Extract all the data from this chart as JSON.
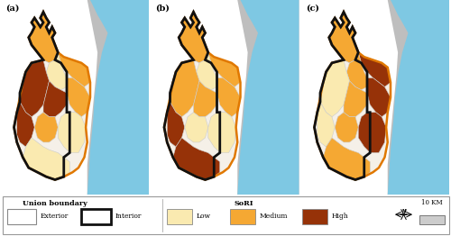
{
  "fig_width": 5.0,
  "fig_height": 2.62,
  "dpi": 100,
  "water_color": "#7EC8E3",
  "land_bg_color": "#C0C0C0",
  "gray_bg_color": "#BEBEBE",
  "exterior_color": "#F5F0E8",
  "low_color": "#FAEAB0",
  "medium_color": "#F5A833",
  "high_color": "#963208",
  "inner_district_border": "#cccccc",
  "outer_boundary_color": "#E07800",
  "inner_boundary_color": "#111111",
  "panel_labels": [
    "(a)",
    "(b)",
    "(c)"
  ],
  "legend_union_title": "Union boundary",
  "legend_sori_title": "SoRI",
  "compass_label": "10 KM",
  "panel_schemes": [
    {
      "top_finger": "medium",
      "upper_right_ext": "medium",
      "upper_center": "low",
      "right_strip": "medium",
      "left_large": "high",
      "center_mid": "high",
      "lower_left": "high",
      "lower_center": "medium",
      "bottom_right": "low",
      "bottom_left": "low"
    },
    {
      "top_finger": "medium",
      "upper_right_ext": "medium",
      "upper_center": "low",
      "right_strip": "medium",
      "left_large": "medium",
      "center_mid": "medium",
      "lower_left": "high",
      "lower_center": "low",
      "bottom_right": "low",
      "bottom_left": "high"
    },
    {
      "top_finger": "medium",
      "upper_right_ext": "high",
      "upper_center": "medium",
      "right_strip": "high",
      "left_large": "low",
      "center_mid": "medium",
      "lower_left": "low",
      "lower_center": "medium",
      "bottom_right": "high",
      "bottom_left": "medium"
    }
  ]
}
